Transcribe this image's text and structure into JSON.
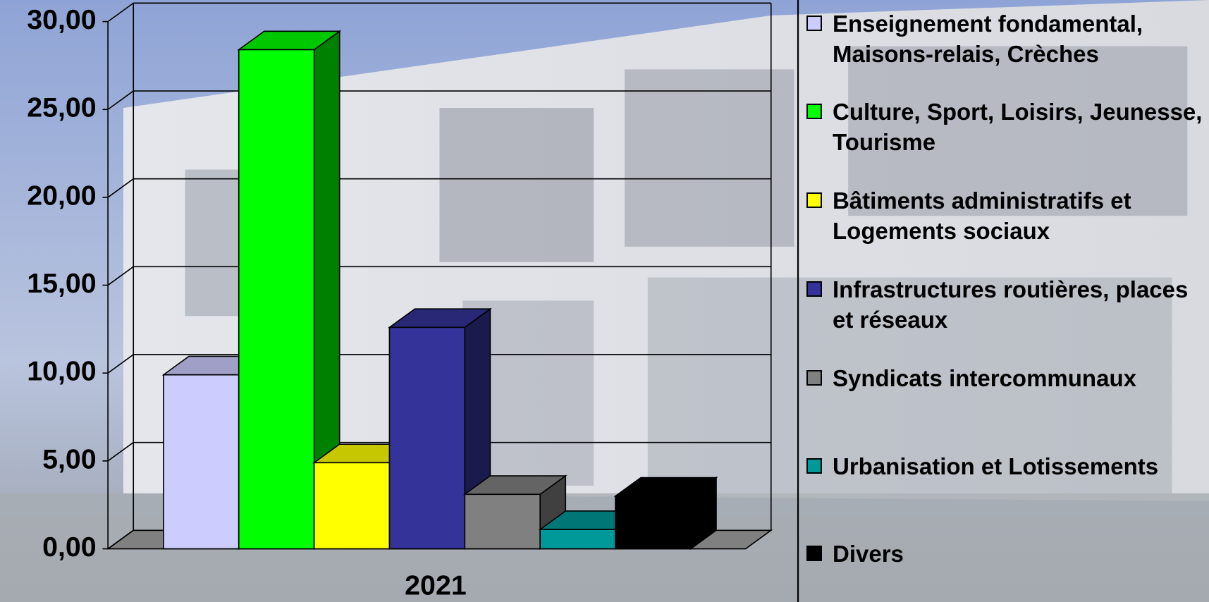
{
  "chart_data": {
    "type": "bar3d",
    "categories": [
      "2021"
    ],
    "series": [
      {
        "name": "Enseignement fondamental, Maisons-relais, Crèches",
        "color": "#ccccff",
        "values": [
          9.9
        ]
      },
      {
        "name": "Culture, Sport, Loisirs, Jeunesse, Tourisme",
        "color": "#00ff00",
        "values": [
          28.4
        ]
      },
      {
        "name": "Bâtiments administratifs et Logements sociaux",
        "color": "#ffff00",
        "values": [
          4.9
        ]
      },
      {
        "name": "Infrastructures routières, places et réseaux",
        "color": "#333399",
        "values": [
          12.6
        ]
      },
      {
        "name": "Syndicats intercommunaux",
        "color": "#808080",
        "values": [
          3.1
        ]
      },
      {
        "name": "Urbanisation et Lotissements",
        "color": "#009999",
        "values": [
          1.1
        ]
      },
      {
        "name": "Divers",
        "color": "#000000",
        "values": [
          3.0
        ]
      }
    ],
    "ylim": [
      0,
      30
    ],
    "yticks": [
      {
        "value": 0,
        "label": "0,00"
      },
      {
        "value": 5,
        "label": "5,00"
      },
      {
        "value": 10,
        "label": "10,00"
      },
      {
        "value": 15,
        "label": "15,00"
      },
      {
        "value": 20,
        "label": "20,00"
      },
      {
        "value": 25,
        "label": "25,00"
      },
      {
        "value": 30,
        "label": "30,00"
      }
    ],
    "grid": true
  }
}
